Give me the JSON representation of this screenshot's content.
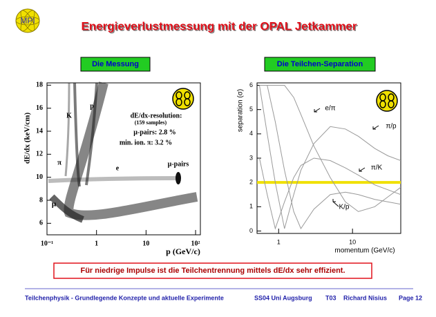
{
  "slide": {
    "logo": "MPI",
    "title": "Energieverlustmessung mit der OPAL Jetkammer",
    "left_heading": "Die Messung",
    "right_heading": "Die Teilchen-Separation",
    "note": "Für niedrige Impulse ist die Teilchentrennung mittels dE/dx sehr effizient.",
    "footer": [
      "Teilchenphysik - Grundlegende Konzepte und aktuelle Experimente",
      "SS04 Uni Augsburg",
      "T03",
      "Richard Nisius",
      "Page 12"
    ]
  },
  "chart_data": [
    {
      "type": "scatter",
      "xlabel": "p (GeV/c)",
      "ylabel": "dE/dx (keV/cm)",
      "log_x": true,
      "xlim": [
        0.1,
        125
      ],
      "xticks": [
        {
          "value": 0.1,
          "label": "10⁻¹"
        },
        1,
        10,
        {
          "value": 100,
          "label": "10²"
        }
      ],
      "ylim": [
        5,
        18.2
      ],
      "yticks": [
        6,
        8,
        10,
        12,
        14,
        16,
        18
      ],
      "annotations": [
        "K",
        "p",
        "π",
        "e",
        "μ",
        "μ-pairs",
        "dE/dx-resolution:",
        "(159 samples)",
        "μ-pairs:  2.8 %",
        "min. ion. π:  3.2 %"
      ]
    },
    {
      "type": "line",
      "xlabel": "momentum (GeV/c)",
      "ylabel": "separation (σ)",
      "log_x": true,
      "xlim": [
        0.51,
        45
      ],
      "xticks": [
        1,
        10
      ],
      "ylim": [
        -0.1,
        6.1
      ],
      "yticks": [
        0,
        1,
        2,
        3,
        4,
        5,
        6
      ],
      "threshold": 2,
      "threshold_color": "#f0e000",
      "x": [
        0.55,
        0.7,
        0.9,
        1.2,
        1.6,
        2,
        3,
        5,
        8,
        12,
        20,
        30,
        45
      ],
      "series": [
        {
          "name": "e/π",
          "color": "#999999",
          "values": [
            6,
            6,
            6,
            6,
            5.5,
            4.8,
            3.5,
            2.2,
            1.2,
            0.8,
            1.0,
            1.4,
            1.8
          ]
        },
        {
          "name": "π/p",
          "color": "#999999",
          "values": [
            6,
            4,
            2,
            0.1,
            1.5,
            2.5,
            3.6,
            4.3,
            4.2,
            3.9,
            3.4,
            3.1,
            2.9
          ]
        },
        {
          "name": "π/K",
          "color": "#999999",
          "values": [
            3,
            1.5,
            0.1,
            1.2,
            2.2,
            2.7,
            3.0,
            2.9,
            2.6,
            2.3,
            1.9,
            1.7,
            1.5
          ]
        },
        {
          "name": "K/p",
          "color": "#999999",
          "values": [
            6,
            6,
            4.5,
            2.5,
            0.8,
            0.1,
            0.9,
            1.5,
            1.6,
            1.5,
            1.3,
            1.2,
            1.1
          ]
        }
      ]
    }
  ]
}
